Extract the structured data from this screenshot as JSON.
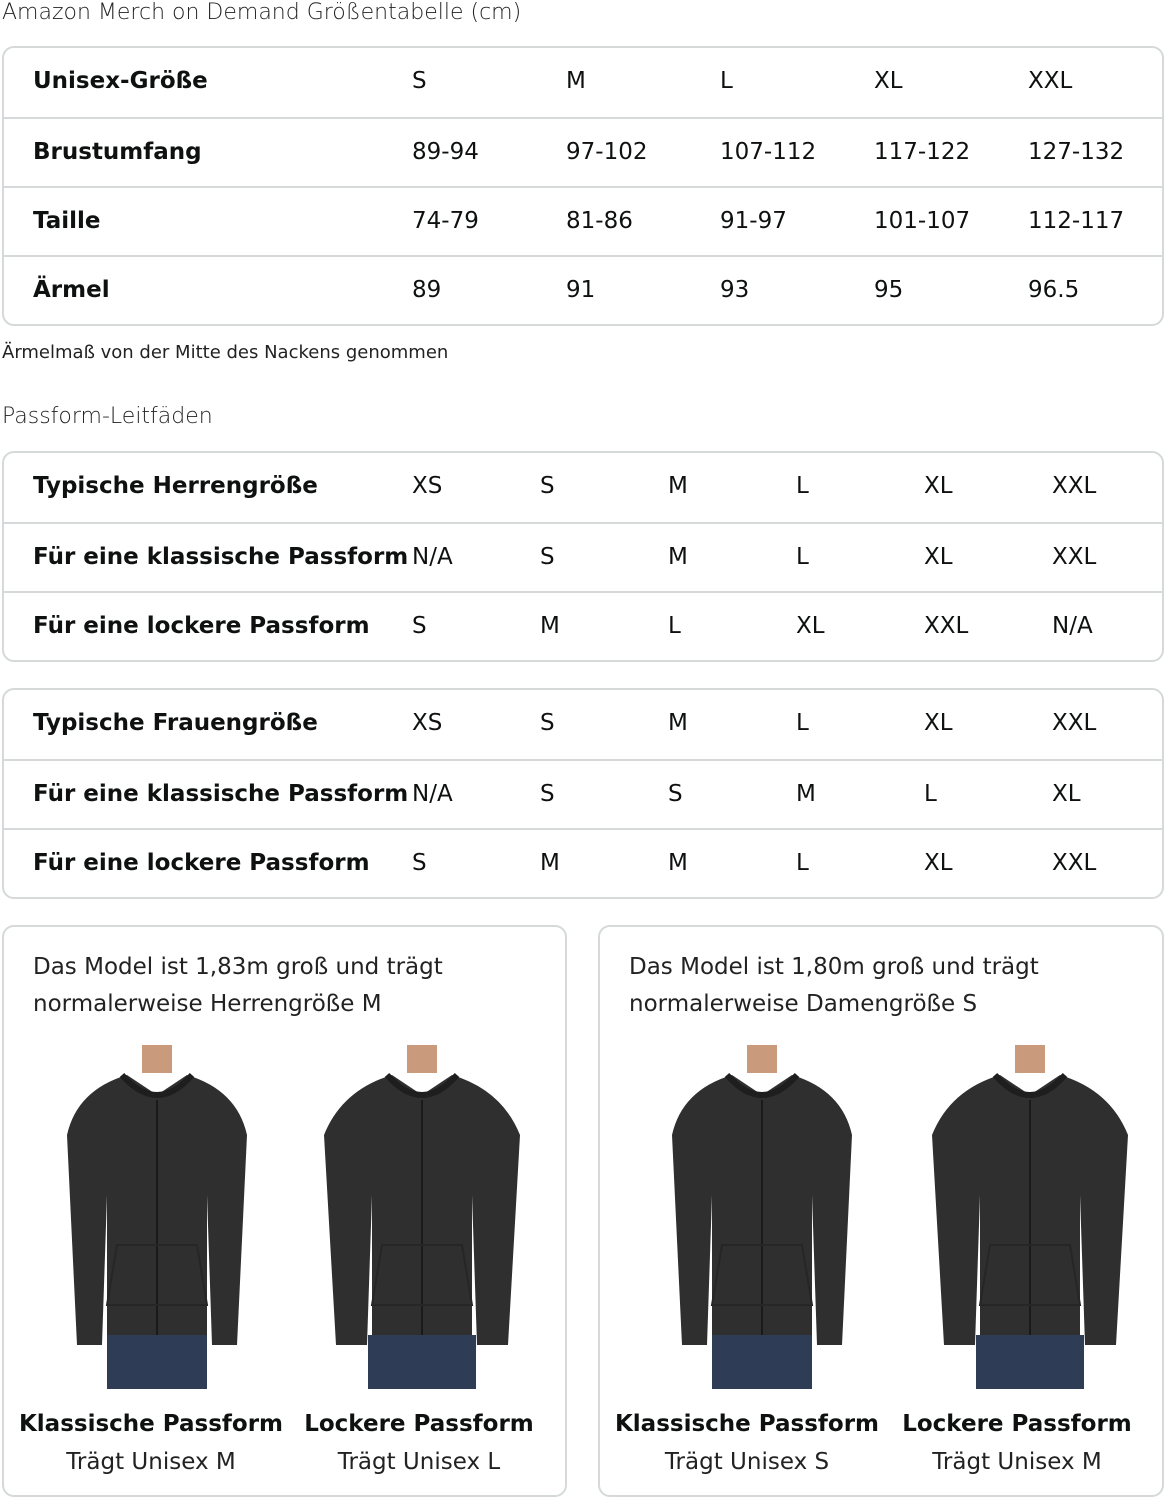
{
  "title": "Amazon Merch on Demand Größentabelle (cm)",
  "size_table": {
    "rows": [
      {
        "label": "Unisex-Größe",
        "values": [
          "S",
          "M",
          "L",
          "XL",
          "XXL"
        ]
      },
      {
        "label": "Brustumfang",
        "values": [
          "89-94",
          "97-102",
          "107-112",
          "117-122",
          "127-132"
        ]
      },
      {
        "label": "Taille",
        "values": [
          "74-79",
          "81-86",
          "91-97",
          "101-107",
          "112-117"
        ]
      },
      {
        "label": "Ärmel",
        "values": [
          "89",
          "91",
          "93",
          "95",
          "96.5"
        ]
      }
    ]
  },
  "note": "Ärmelmaß von der Mitte des Nackens genommen",
  "fit_title": "Passform-Leitfäden",
  "men_table": {
    "rows": [
      {
        "label": "Typische Herrengröße",
        "values": [
          "XS",
          "S",
          "M",
          "L",
          "XL",
          "XXL"
        ]
      },
      {
        "label": "Für eine klassische Passform",
        "values": [
          "N/A",
          "S",
          "M",
          "L",
          "XL",
          "XXL"
        ]
      },
      {
        "label": "Für eine lockere Passform",
        "values": [
          "S",
          "M",
          "L",
          "XL",
          "XXL",
          "N/A"
        ]
      }
    ]
  },
  "women_table": {
    "rows": [
      {
        "label": "Typische Frauengröße",
        "values": [
          "XS",
          "S",
          "M",
          "L",
          "XL",
          "XXL"
        ]
      },
      {
        "label": "Für eine klassische Passform",
        "values": [
          "N/A",
          "S",
          "S",
          "M",
          "L",
          "XL"
        ]
      },
      {
        "label": "Für eine lockere Passform",
        "values": [
          "S",
          "M",
          "M",
          "L",
          "XL",
          "XXL"
        ]
      }
    ]
  },
  "cards": [
    {
      "caption": "Das Model ist 1,83m groß und trägt normalerweise Herrengröße M",
      "photos": [
        {
          "fit": "Klassische Passform",
          "wears": "Trägt Unisex M"
        },
        {
          "fit": "Lockere Passform",
          "wears": "Trägt Unisex L"
        }
      ]
    },
    {
      "caption": "Das Model ist 1,80m groß und trägt normalerweise Damengröße S",
      "photos": [
        {
          "fit": "Klassische Passform",
          "wears": "Trägt Unisex S"
        },
        {
          "fit": "Lockere Passform",
          "wears": "Trägt Unisex M"
        }
      ]
    }
  ],
  "colors": {
    "border": "#d5d9d9",
    "hoodie": "#2f2f2f",
    "jeans": "#2e3d55",
    "skin": "#c99a7c"
  }
}
